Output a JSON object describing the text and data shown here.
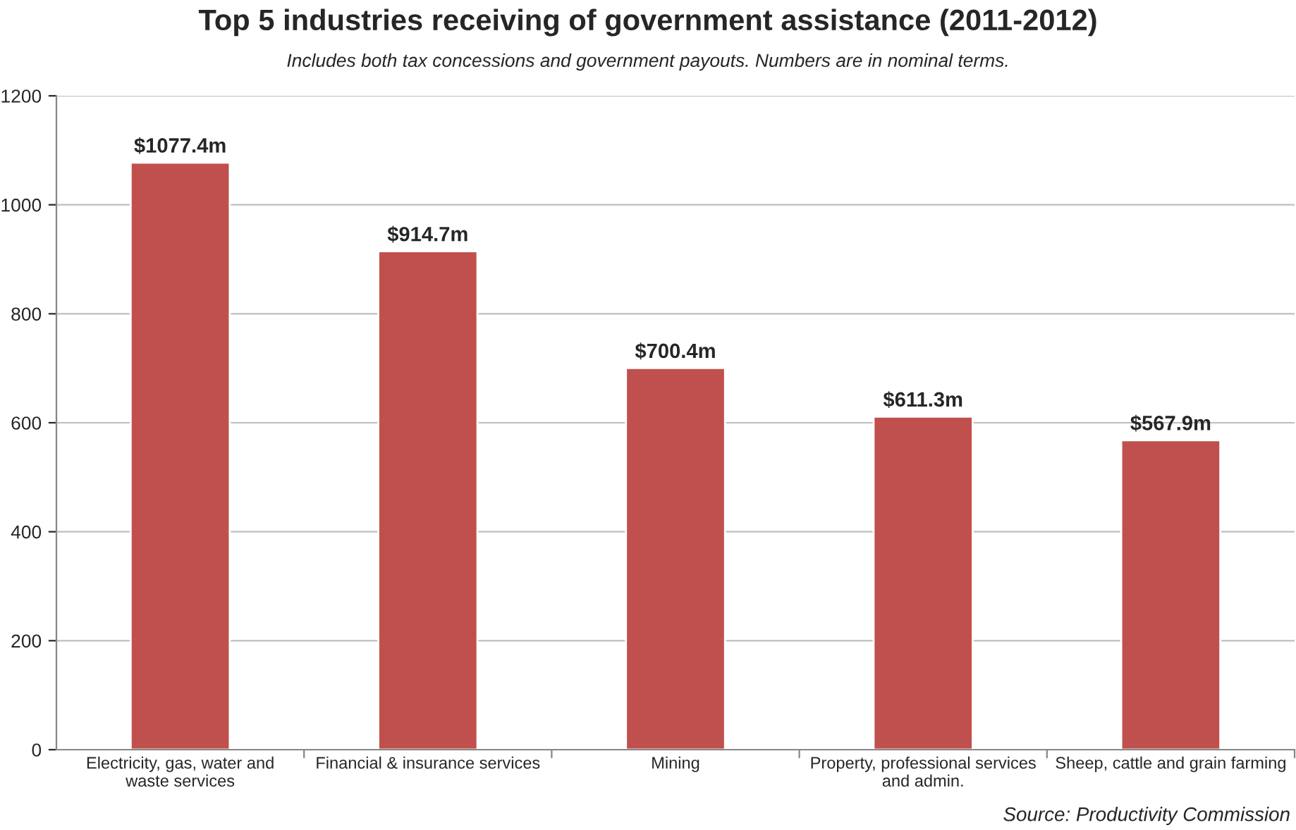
{
  "chart_data": {
    "type": "bar",
    "title": "Top 5 industries receiving of government assistance (2011-2012)",
    "subtitle": "Includes both tax concessions and government payouts. Numbers are in nominal terms.",
    "annotations": [
      "Source: Productivity Commission"
    ],
    "categories": [
      "Electricity, gas, water and waste services",
      "Financial & insurance services",
      "Mining",
      "Property, professional services and admin.",
      "Sheep, cattle and grain farming"
    ],
    "values": [
      1077.4,
      914.7,
      700.4,
      611.3,
      567.9
    ],
    "value_labels": [
      "$1077.4m",
      "$914.7m",
      "$700.4m",
      "$611.3m",
      "$567.9m"
    ],
    "color": "#c0504d",
    "ylim": [
      0,
      1200
    ],
    "yticks": [
      0,
      200,
      400,
      600,
      800,
      1000,
      1200
    ],
    "grid": "y",
    "legend": false
  }
}
